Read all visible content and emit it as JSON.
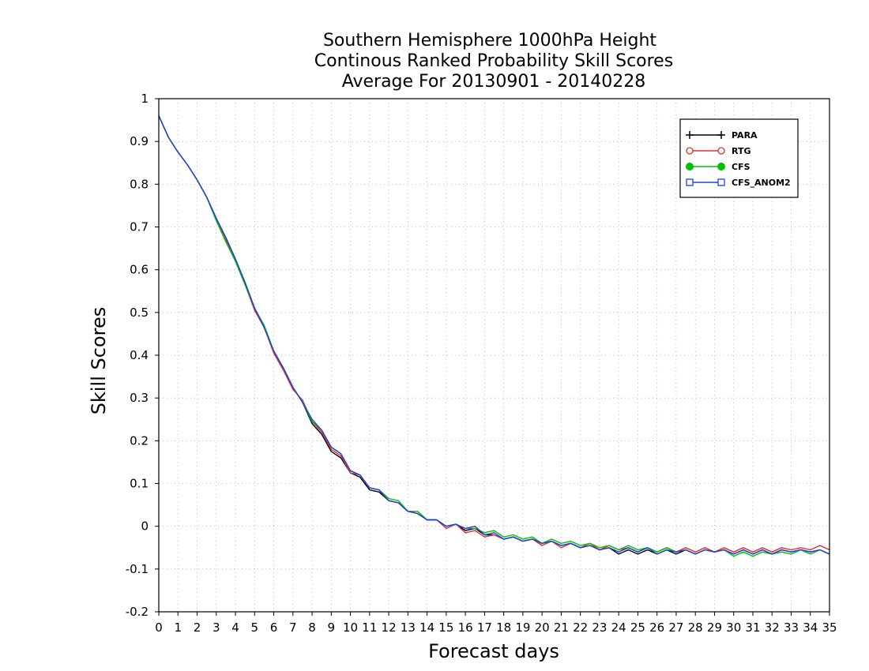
{
  "chart_data": {
    "type": "line",
    "title_lines": [
      "Southern Hemisphere 1000hPa Height",
      "Continous Ranked Probability Skill Scores",
      "Average For 20130901 - 20140228"
    ],
    "xlabel": "Forecast days",
    "ylabel": "Skill Scores",
    "xlim": [
      0,
      35
    ],
    "ylim": [
      -0.2,
      1
    ],
    "x_ticks": [
      "0",
      "1",
      "2",
      "3",
      "4",
      "5",
      "6",
      "7",
      "8",
      "9",
      "10",
      "11",
      "12",
      "13",
      "14",
      "15",
      "16",
      "17",
      "18",
      "19",
      "20",
      "21",
      "22",
      "23",
      "24",
      "25",
      "26",
      "27",
      "28",
      "29",
      "30",
      "31",
      "32",
      "33",
      "34",
      "35"
    ],
    "y_ticks": [
      "1",
      "0.9",
      "0.8",
      "0.7",
      "0.6",
      "0.5",
      "0.4",
      "0.3",
      "0.2",
      "0.1",
      "0",
      "-0.1",
      "-0.2"
    ],
    "grid": true,
    "legend_position": "top-right",
    "x": [
      0,
      0.5,
      1,
      1.5,
      2,
      2.5,
      3,
      3.5,
      4,
      4.5,
      5,
      5.5,
      6,
      6.5,
      7,
      7.5,
      8,
      8.5,
      9,
      9.5,
      10,
      10.5,
      11,
      11.5,
      12,
      12.5,
      13,
      13.5,
      14,
      14.5,
      15,
      15.5,
      16,
      16.5,
      17,
      17.5,
      18,
      18.5,
      19,
      19.5,
      20,
      20.5,
      21,
      21.5,
      22,
      22.5,
      23,
      23.5,
      24,
      24.5,
      25,
      25.5,
      26,
      26.5,
      27,
      27.5,
      28,
      28.5,
      29,
      29.5,
      30,
      30.5,
      31,
      31.5,
      32,
      32.5,
      33,
      33.5,
      34,
      34.5,
      35
    ],
    "series": [
      {
        "name": "PARA",
        "color": "#000000",
        "marker": "plus",
        "values": [
          0.96,
          0.91,
          0.875,
          0.845,
          0.81,
          0.77,
          0.72,
          0.675,
          0.625,
          0.57,
          0.51,
          0.465,
          0.41,
          0.37,
          0.325,
          0.29,
          0.24,
          0.215,
          0.175,
          0.16,
          0.125,
          0.115,
          0.085,
          0.08,
          0.06,
          0.055,
          0.035,
          0.03,
          0.015,
          0.015,
          0.0,
          0.005,
          -0.01,
          -0.005,
          -0.02,
          -0.02,
          -0.03,
          -0.025,
          -0.035,
          -0.03,
          -0.04,
          -0.035,
          -0.045,
          -0.04,
          -0.05,
          -0.045,
          -0.055,
          -0.05,
          -0.065,
          -0.055,
          -0.065,
          -0.055,
          -0.065,
          -0.055,
          -0.065,
          -0.055,
          -0.065,
          -0.055,
          -0.06,
          -0.055,
          -0.065,
          -0.055,
          -0.065,
          -0.055,
          -0.065,
          -0.055,
          -0.06,
          -0.055,
          -0.06,
          -0.055,
          -0.065
        ]
      },
      {
        "name": "RTG",
        "color": "#e03030",
        "marker": "circle-open",
        "values": [
          0.96,
          0.91,
          0.875,
          0.845,
          0.81,
          0.77,
          0.715,
          0.67,
          0.62,
          0.565,
          0.505,
          0.465,
          0.405,
          0.365,
          0.32,
          0.295,
          0.245,
          0.22,
          0.18,
          0.165,
          0.125,
          0.12,
          0.09,
          0.085,
          0.06,
          0.055,
          0.035,
          0.03,
          0.015,
          0.015,
          -0.005,
          0.005,
          -0.015,
          -0.01,
          -0.025,
          -0.02,
          -0.03,
          -0.025,
          -0.035,
          -0.03,
          -0.045,
          -0.035,
          -0.05,
          -0.04,
          -0.05,
          -0.04,
          -0.055,
          -0.045,
          -0.055,
          -0.05,
          -0.06,
          -0.05,
          -0.06,
          -0.05,
          -0.06,
          -0.05,
          -0.06,
          -0.05,
          -0.06,
          -0.05,
          -0.06,
          -0.05,
          -0.06,
          -0.05,
          -0.06,
          -0.05,
          -0.055,
          -0.05,
          -0.055,
          -0.045,
          -0.055
        ]
      },
      {
        "name": "CFS",
        "color": "#00c000",
        "marker": "circle-filled",
        "values": [
          0.96,
          0.91,
          0.875,
          0.845,
          0.81,
          0.77,
          0.715,
          0.665,
          0.62,
          0.565,
          0.51,
          0.47,
          0.41,
          0.37,
          0.325,
          0.29,
          0.245,
          0.225,
          0.185,
          0.17,
          0.13,
          0.12,
          0.09,
          0.085,
          0.065,
          0.06,
          0.035,
          0.035,
          0.015,
          0.015,
          0.0,
          0.005,
          -0.005,
          -0.005,
          -0.015,
          -0.01,
          -0.025,
          -0.02,
          -0.03,
          -0.025,
          -0.04,
          -0.03,
          -0.04,
          -0.035,
          -0.045,
          -0.04,
          -0.05,
          -0.045,
          -0.055,
          -0.045,
          -0.055,
          -0.05,
          -0.06,
          -0.05,
          -0.06,
          -0.055,
          -0.065,
          -0.055,
          -0.06,
          -0.055,
          -0.07,
          -0.06,
          -0.07,
          -0.06,
          -0.065,
          -0.06,
          -0.065,
          -0.055,
          -0.065,
          -0.055,
          -0.065
        ]
      },
      {
        "name": "CFS_ANOM2",
        "color": "#2040e0",
        "marker": "square-open",
        "values": [
          0.96,
          0.91,
          0.875,
          0.845,
          0.81,
          0.77,
          0.72,
          0.675,
          0.625,
          0.57,
          0.51,
          0.465,
          0.41,
          0.37,
          0.325,
          0.29,
          0.25,
          0.225,
          0.185,
          0.17,
          0.13,
          0.12,
          0.09,
          0.085,
          0.06,
          0.055,
          0.035,
          0.03,
          0.015,
          0.015,
          0.0,
          0.005,
          -0.005,
          0.0,
          -0.02,
          -0.015,
          -0.03,
          -0.025,
          -0.035,
          -0.03,
          -0.04,
          -0.035,
          -0.045,
          -0.04,
          -0.05,
          -0.045,
          -0.055,
          -0.05,
          -0.06,
          -0.05,
          -0.06,
          -0.05,
          -0.065,
          -0.055,
          -0.06,
          -0.055,
          -0.065,
          -0.055,
          -0.06,
          -0.055,
          -0.065,
          -0.055,
          -0.065,
          -0.055,
          -0.065,
          -0.055,
          -0.06,
          -0.055,
          -0.06,
          -0.055,
          -0.065
        ]
      }
    ]
  }
}
